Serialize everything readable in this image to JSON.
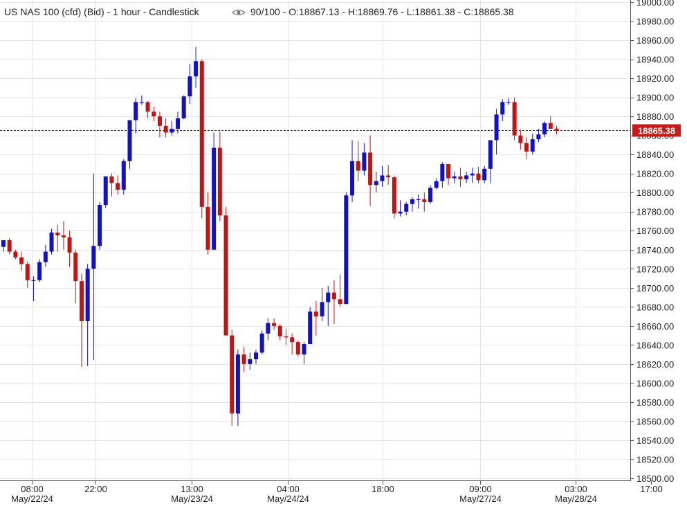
{
  "header": {
    "symbol": "US NAS 100 (cfd) (Bid) - 1 hour - Candlestick",
    "icon": "eye-icon",
    "ohlc": "90/100 - O:18867.13 - H:18869.76 - L:18861.38 - C:18865.38"
  },
  "price_label": "18865.38",
  "colors": {
    "up": "#1212c4",
    "down": "#c01515",
    "price_tag": "#c41b1b",
    "grid": "#e4e4e4"
  },
  "chart_data": {
    "type": "candlestick",
    "title": "US NAS 100 (cfd) (Bid) - 1 hour - Candlestick",
    "ylim": [
      18500,
      19000
    ],
    "last_price": 18865.38,
    "yticks": [
      "19000.00",
      "18980.00",
      "18960.00",
      "18940.00",
      "18920.00",
      "18900.00",
      "18880.00",
      "18860.00",
      "18840.00",
      "18820.00",
      "18800.00",
      "18780.00",
      "18760.00",
      "18740.00",
      "18720.00",
      "18700.00",
      "18680.00",
      "18660.00",
      "18640.00",
      "18620.00",
      "18600.00",
      "18580.00",
      "18560.00",
      "18540.00",
      "18520.00",
      "18500.00"
    ],
    "xticks": [
      {
        "label": "08:00",
        "date": "May/22/24",
        "i": 4.7
      },
      {
        "label": "22:00",
        "date": "",
        "i": 15.3
      },
      {
        "label": "13:00",
        "date": "May/23/24",
        "i": 31.3
      },
      {
        "label": "04:00",
        "date": "May/24/24",
        "i": 47.3
      },
      {
        "label": "18:00",
        "date": "",
        "i": 63.1
      },
      {
        "label": "09:00",
        "date": "May/27/24",
        "i": 79.3
      },
      {
        "label": "03:00",
        "date": "May/28/24",
        "i": 95.2
      },
      {
        "label": "17:00",
        "date": "",
        "i": 107.7
      }
    ],
    "candles": [
      [
        18743,
        18750,
        18738,
        18750
      ],
      [
        18750,
        18752,
        18735,
        18738
      ],
      [
        18738,
        18740,
        18730,
        18732
      ],
      [
        18732,
        18738,
        18718,
        18725
      ],
      [
        18725,
        18728,
        18700,
        18708
      ],
      [
        18708,
        18712,
        18686,
        18708
      ],
      [
        18708,
        18730,
        18706,
        18727
      ],
      [
        18727,
        18745,
        18722,
        18738
      ],
      [
        18738,
        18762,
        18735,
        18758
      ],
      [
        18758,
        18766,
        18738,
        18755
      ],
      [
        18755,
        18770,
        18740,
        18753
      ],
      [
        18753,
        18760,
        18722,
        18737
      ],
      [
        18737,
        18740,
        18684,
        18707
      ],
      [
        18707,
        18715,
        18617,
        18665
      ],
      [
        18665,
        18725,
        18618,
        18720
      ],
      [
        18720,
        18820,
        18624,
        18744
      ],
      [
        18744,
        18790,
        18740,
        18787
      ],
      [
        18787,
        18815,
        18784,
        18817
      ],
      [
        18817,
        18820,
        18796,
        18810
      ],
      [
        18810,
        18818,
        18798,
        18803
      ],
      [
        18803,
        18835,
        18798,
        18833
      ],
      [
        18833,
        18875,
        18825,
        18876
      ],
      [
        18876,
        18899,
        18862,
        18895
      ],
      [
        18895,
        18902,
        18892,
        18895
      ],
      [
        18895,
        18896,
        18878,
        18885
      ],
      [
        18885,
        18890,
        18875,
        18880
      ],
      [
        18880,
        18885,
        18858,
        18870
      ],
      [
        18870,
        18878,
        18858,
        18863
      ],
      [
        18863,
        18875,
        18860,
        18867
      ],
      [
        18867,
        18885,
        18862,
        18878
      ],
      [
        18878,
        18902,
        18877,
        18901
      ],
      [
        18901,
        18935,
        18893,
        18922
      ],
      [
        18922,
        18953,
        18910,
        18938
      ],
      [
        18938,
        18940,
        18773,
        18785
      ],
      [
        18785,
        18800,
        18735,
        18740
      ],
      [
        18740,
        18863,
        18740,
        18847
      ],
      [
        18847,
        18864,
        18770,
        18776
      ],
      [
        18776,
        18785,
        18650,
        18650
      ],
      [
        18650,
        18656,
        18555,
        18568
      ],
      [
        18568,
        18635,
        18555,
        18630
      ],
      [
        18630,
        18638,
        18612,
        18620
      ],
      [
        18620,
        18632,
        18614,
        18625
      ],
      [
        18625,
        18635,
        18620,
        18632
      ],
      [
        18632,
        18655,
        18630,
        18652
      ],
      [
        18652,
        18668,
        18645,
        18663
      ],
      [
        18663,
        18668,
        18656,
        18660
      ],
      [
        18660,
        18662,
        18645,
        18649
      ],
      [
        18649,
        18657,
        18640,
        18648
      ],
      [
        18648,
        18652,
        18630,
        18643
      ],
      [
        18643,
        18645,
        18628,
        18630
      ],
      [
        18630,
        18643,
        18620,
        18641
      ],
      [
        18641,
        18680,
        18641,
        18675
      ],
      [
        18675,
        18686,
        18650,
        18670
      ],
      [
        18670,
        18700,
        18665,
        18685
      ],
      [
        18685,
        18702,
        18660,
        18695
      ],
      [
        18695,
        18708,
        18662,
        18688
      ],
      [
        18688,
        18714,
        18680,
        18683
      ],
      [
        18683,
        18800,
        18683,
        18797
      ],
      [
        18797,
        18855,
        18790,
        18833
      ],
      [
        18833,
        18854,
        18812,
        18823
      ],
      [
        18823,
        18852,
        18818,
        18842
      ],
      [
        18842,
        18860,
        18786,
        18808
      ],
      [
        18808,
        18822,
        18800,
        18812
      ],
      [
        18812,
        18828,
        18806,
        18818
      ],
      [
        18818,
        18829,
        18808,
        18816
      ],
      [
        18816,
        18818,
        18773,
        18778
      ],
      [
        18778,
        18792,
        18775,
        18780
      ],
      [
        18780,
        18790,
        18776,
        18788
      ],
      [
        18788,
        18795,
        18780,
        18793
      ],
      [
        18793,
        18798,
        18783,
        18793
      ],
      [
        18793,
        18800,
        18780,
        18790
      ],
      [
        18790,
        18808,
        18788,
        18805
      ],
      [
        18805,
        18815,
        18803,
        18812
      ],
      [
        18812,
        18832,
        18805,
        18830
      ],
      [
        18830,
        18830,
        18808,
        18815
      ],
      [
        18815,
        18822,
        18810,
        18817
      ],
      [
        18817,
        18826,
        18806,
        18814
      ],
      [
        18814,
        18822,
        18810,
        18818
      ],
      [
        18818,
        18826,
        18810,
        18820
      ],
      [
        18820,
        18827,
        18810,
        18813
      ],
      [
        18813,
        18828,
        18810,
        18825
      ],
      [
        18825,
        18855,
        18810,
        18855
      ],
      [
        18855,
        18888,
        18840,
        18882
      ],
      [
        18882,
        18898,
        18875,
        18895
      ],
      [
        18895,
        18899,
        18892,
        18895
      ],
      [
        18895,
        18900,
        18855,
        18860
      ],
      [
        18860,
        18866,
        18845,
        18852
      ],
      [
        18852,
        18858,
        18835,
        18843
      ],
      [
        18843,
        18862,
        18840,
        18856
      ],
      [
        18856,
        18867,
        18853,
        18861
      ],
      [
        18861,
        18875,
        18858,
        18873
      ],
      [
        18873,
        18880,
        18867,
        18867
      ],
      [
        18867,
        18870,
        18861,
        18865
      ]
    ]
  }
}
